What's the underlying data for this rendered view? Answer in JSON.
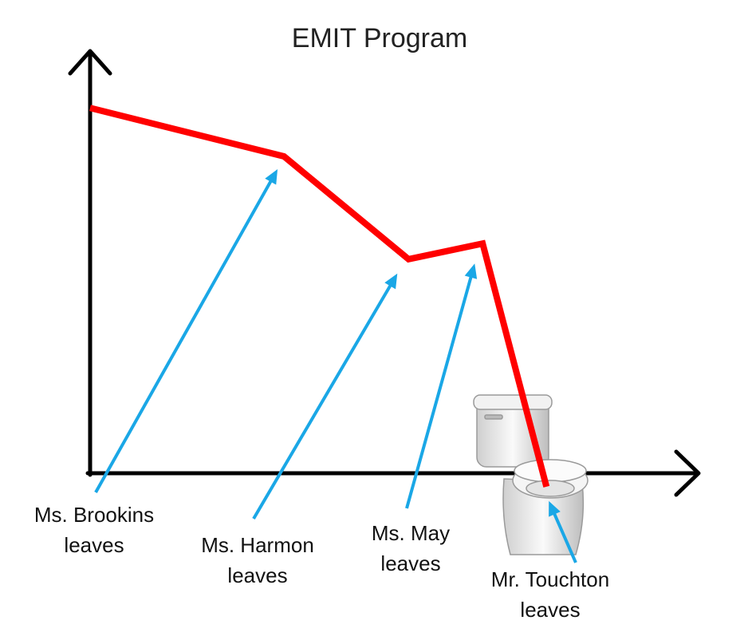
{
  "chart_data": {
    "type": "line",
    "title": "EMIT Program",
    "x": [
      0,
      31.9,
      52.4,
      64.6,
      75.1
    ],
    "values": [
      86.7,
      75.2,
      50.8,
      54.5,
      -3.2
    ],
    "color": "#ff0000",
    "xlim": [
      0,
      100
    ],
    "ylim": [
      0,
      100
    ],
    "annotation_color": "#1aa7e6",
    "annotations": [
      {
        "lines": [
          "Ms. Brookins",
          "leaves"
        ],
        "point": 1
      },
      {
        "lines": [
          "Ms. Harmon",
          "leaves"
        ],
        "point": 2
      },
      {
        "lines": [
          "Ms. May",
          "leaves"
        ],
        "point": 3
      },
      {
        "lines": [
          "Mr. Touchton",
          "leaves"
        ],
        "point": 4
      }
    ]
  }
}
